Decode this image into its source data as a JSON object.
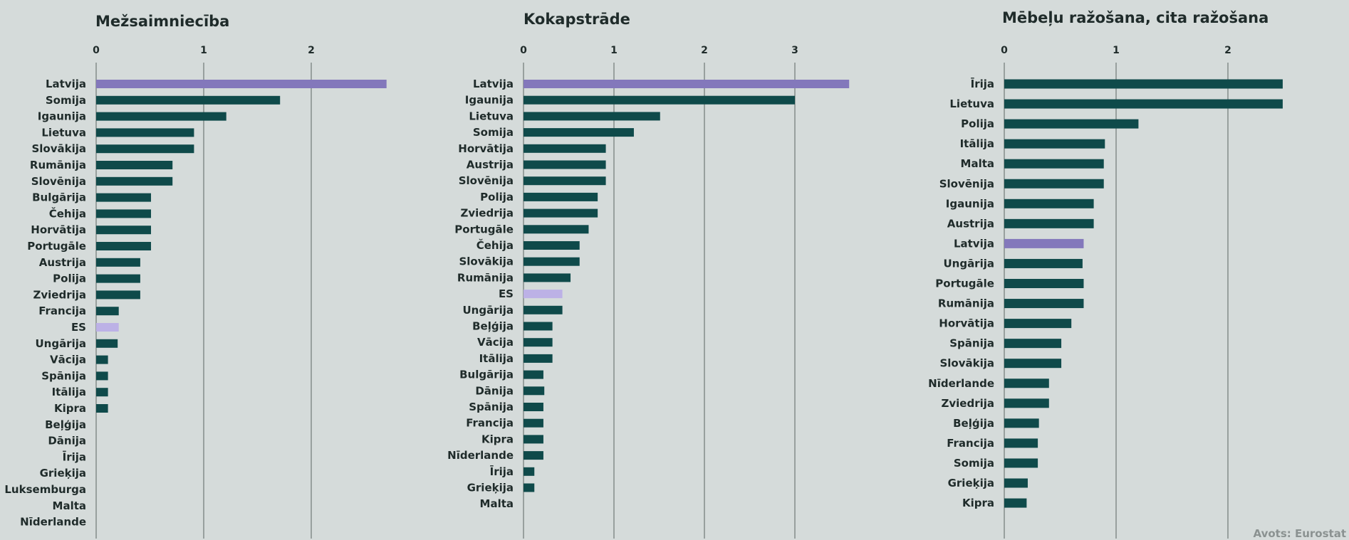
{
  "colors": {
    "bar": "#0f4a4a",
    "latvija": "#8378bb",
    "es": "#bcb1e6",
    "background": "#d5dbda"
  },
  "source": "Avots: Eurostat",
  "chart_data": [
    {
      "type": "bar",
      "orientation": "horizontal",
      "title": "Mežsaimniecība",
      "xlim": [
        0,
        2.75
      ],
      "ticks": [
        0,
        1,
        2
      ],
      "grid": true,
      "categories": [
        "Latvija",
        "Somija",
        "Igaunija",
        "Lietuva",
        "Slovākija",
        "Rumānija",
        "Slovēnija",
        "Bulgārija",
        "Čehija",
        "Horvātija",
        "Portugāle",
        "Austrija",
        "Polija",
        "Zviedrija",
        "Francija",
        "ES",
        "Ungārija",
        "Vācija",
        "Spānija",
        "Itālija",
        "Kipra",
        "Beļģija",
        "Dānija",
        "Īrija",
        "Grieķija",
        "Luksemburga",
        "Malta",
        "Nīderlande"
      ],
      "values": [
        2.7,
        1.71,
        1.21,
        0.91,
        0.91,
        0.71,
        0.71,
        0.51,
        0.51,
        0.51,
        0.51,
        0.41,
        0.41,
        0.41,
        0.21,
        0.21,
        0.2,
        0.11,
        0.11,
        0.11,
        0.11,
        0,
        0,
        0,
        0,
        0,
        0,
        0
      ]
    },
    {
      "type": "bar",
      "orientation": "horizontal",
      "title": "Kokapstrāde",
      "xlim": [
        0,
        3.8
      ],
      "ticks": [
        0,
        1,
        2,
        3
      ],
      "grid": true,
      "categories": [
        "Latvija",
        "Igaunija",
        "Lietuva",
        "Somija",
        "Horvātija",
        "Austrija",
        "Slovēnija",
        "Polija",
        "Zviedrija",
        "Portugāle",
        "Čehija",
        "Slovākija",
        "Rumānija",
        "ES",
        "Ungārija",
        "Beļģija",
        "Vācija",
        "Itālija",
        "Bulgārija",
        "Dānija",
        "Spānija",
        "Francija",
        "Kipra",
        "Nīderlande",
        "Īrija",
        "Grieķija",
        "Malta"
      ],
      "values": [
        3.6,
        3.0,
        1.51,
        1.22,
        0.91,
        0.91,
        0.91,
        0.82,
        0.82,
        0.72,
        0.62,
        0.62,
        0.52,
        0.43,
        0.43,
        0.32,
        0.32,
        0.32,
        0.22,
        0.23,
        0.22,
        0.22,
        0.22,
        0.22,
        0.12,
        0.12,
        0
      ]
    },
    {
      "type": "bar",
      "orientation": "horizontal",
      "title": "Mēbeļu ražošana, cita ražošana",
      "xlim": [
        0,
        3.0
      ],
      "ticks": [
        0,
        1,
        2
      ],
      "grid": true,
      "categories": [
        "Īrija",
        "Lietuva",
        "Polija",
        "Itālija",
        "Malta",
        "Slovēnija",
        "Igaunija",
        "Austrija",
        "Latvija",
        "Ungārija",
        "Portugāle",
        "Rumānija",
        "Horvātija",
        "Spānija",
        "Slovākija",
        "Nīderlande",
        "Zviedrija",
        "Beļģija",
        "Francija",
        "Somija",
        "Grieķija",
        "Kipra"
      ],
      "values": [
        2.49,
        2.49,
        1.2,
        0.9,
        0.89,
        0.89,
        0.8,
        0.8,
        0.71,
        0.7,
        0.71,
        0.71,
        0.6,
        0.51,
        0.51,
        0.4,
        0.4,
        0.31,
        0.3,
        0.3,
        0.21,
        0.2
      ]
    }
  ]
}
